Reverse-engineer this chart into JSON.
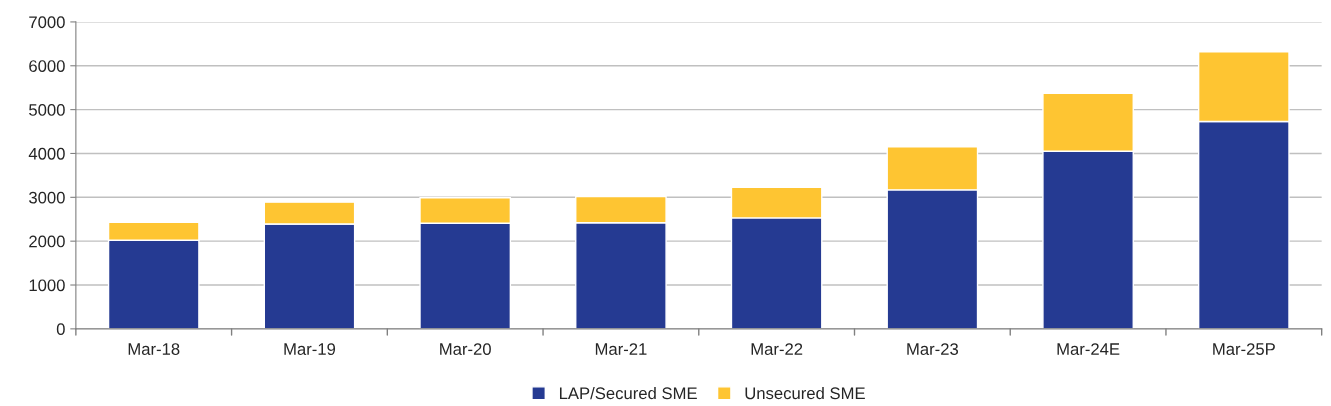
{
  "chart_data": {
    "type": "bar",
    "stacked": true,
    "categories": [
      "Mar-18",
      "Mar-19",
      "Mar-20",
      "Mar-21",
      "Mar-22",
      "Mar-23",
      "Mar-24E",
      "Mar-25P"
    ],
    "series": [
      {
        "name": "LAP/Secured SME",
        "color": "#253a92",
        "values": [
          2020,
          2390,
          2410,
          2420,
          2530,
          3170,
          4050,
          4730
        ]
      },
      {
        "name": "Unsecured SME",
        "color": "#fec532",
        "values": [
          410,
          500,
          580,
          600,
          700,
          980,
          1320,
          1590
        ]
      }
    ],
    "ylim": [
      0,
      7000
    ],
    "yticks": [
      0,
      1000,
      2000,
      3000,
      4000,
      5000,
      6000,
      7000
    ],
    "grid": "y",
    "legend": "bottom"
  }
}
